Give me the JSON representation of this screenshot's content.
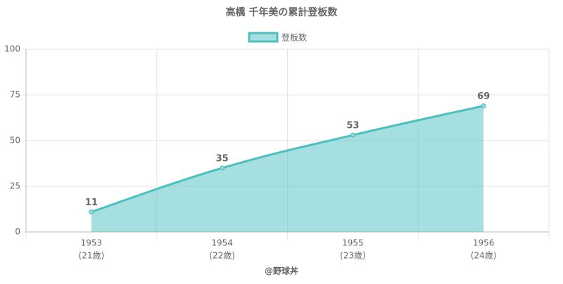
{
  "chart_data": {
    "type": "line",
    "title": "高橋 千年美の累計登板数",
    "categories": [
      "1953",
      "1954",
      "1955",
      "1956"
    ],
    "category_sublabels": [
      "(21歳)",
      "(22歳)",
      "(23歳)",
      "(24歳)"
    ],
    "series": [
      {
        "name": "登板数",
        "color": "#4dbfbf",
        "values": [
          11,
          35,
          53,
          69
        ]
      }
    ],
    "x_label": "@野球丼",
    "ylim": [
      0,
      100
    ],
    "yticks": [
      0,
      25,
      50,
      75,
      100
    ],
    "grid": true,
    "area": true,
    "legend": "top"
  }
}
